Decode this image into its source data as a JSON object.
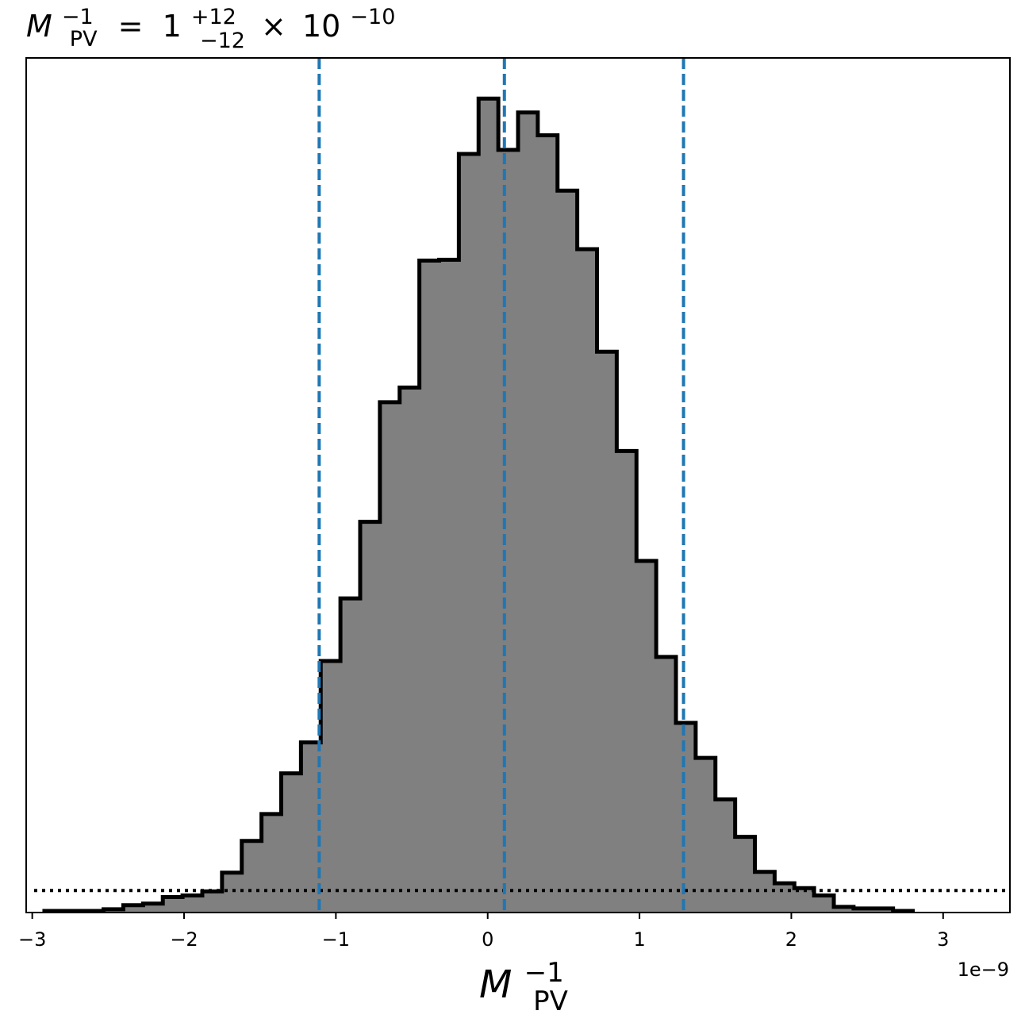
{
  "chart_data": {
    "type": "histogram",
    "title": {
      "symbol": "M",
      "symbol_sub": "PV",
      "symbol_sup": "−1",
      "equals": "=",
      "value": "1",
      "err_up": "+12",
      "err_down": "−12",
      "times": "×",
      "base": "10",
      "exponent": "−10"
    },
    "xlabel": {
      "symbol": "M",
      "sub": "PV",
      "sup": "−1"
    },
    "offset_text": "1e−9",
    "x_scale_factor": 1e-09,
    "xlim": [
      -3.04,
      3.44
    ],
    "ylim": [
      0,
      1.05
    ],
    "x_ticks": [
      -3,
      -2,
      -1,
      0,
      1,
      2,
      3
    ],
    "x_tick_labels": [
      "−3",
      "−2",
      "−1",
      "0",
      "1",
      "2",
      "3"
    ],
    "y_ticks_visible": false,
    "bin_edges": [
      -2.92,
      -2.79,
      -2.66,
      -2.53,
      -2.4,
      -2.27,
      -2.14,
      -2.01,
      -1.88,
      -1.75,
      -1.62,
      -1.49,
      -1.36,
      -1.23,
      -1.1,
      -0.97,
      -0.84,
      -0.71,
      -0.58,
      -0.45,
      -0.32,
      -0.19,
      -0.06,
      0.07,
      0.2,
      0.33,
      0.46,
      0.59,
      0.72,
      0.85,
      0.98,
      1.11,
      1.24,
      1.37,
      1.5,
      1.63,
      1.76,
      1.89,
      2.02,
      2.15,
      2.28,
      2.41,
      2.54,
      2.67,
      2.8
    ],
    "counts": [
      0.002,
      0.002,
      0.002,
      0.004,
      0.009,
      0.011,
      0.019,
      0.021,
      0.026,
      0.049,
      0.088,
      0.121,
      0.171,
      0.209,
      0.309,
      0.386,
      0.48,
      0.627,
      0.645,
      0.801,
      0.802,
      0.932,
      1.0,
      0.937,
      0.983,
      0.955,
      0.887,
      0.815,
      0.689,
      0.567,
      0.432,
      0.314,
      0.233,
      0.19,
      0.139,
      0.093,
      0.05,
      0.036,
      0.03,
      0.021,
      0.007,
      0.005,
      0.005,
      0.002
    ],
    "fill_color": "#808080",
    "edge_color": "#000000",
    "vlines": [
      -1.11,
      0.11,
      1.29
    ],
    "vline_color": "#1f77b4",
    "vline_style": "dashed",
    "hline": 0.027,
    "hline_color": "#000000",
    "hline_style": "dotted",
    "grid": false
  }
}
